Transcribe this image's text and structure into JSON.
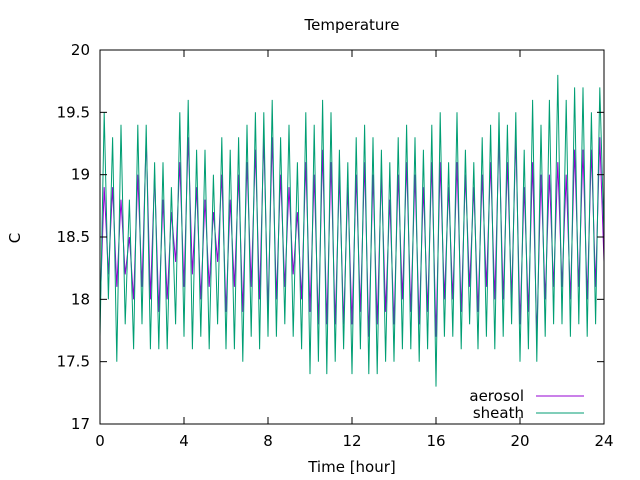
{
  "chart_data": {
    "type": "line",
    "title": "Temperature",
    "xlabel": "Time [hour]",
    "ylabel": "C",
    "xlim": [
      0,
      24
    ],
    "ylim": [
      17,
      20
    ],
    "xticks": [
      0,
      4,
      8,
      12,
      16,
      20,
      24
    ],
    "yticks": [
      17,
      17.5,
      18,
      18.5,
      19,
      19.5,
      20
    ],
    "grid": false,
    "legend_position": "bottom-right",
    "series": [
      {
        "name": "aerosol",
        "color": "#9400d3",
        "x": [
          0.0,
          0.2,
          0.4,
          0.6,
          0.8,
          1.0,
          1.2,
          1.4,
          1.6,
          1.8,
          2.0,
          2.2,
          2.4,
          2.6,
          2.8,
          3.0,
          3.2,
          3.4,
          3.6,
          3.8,
          4.0,
          4.2,
          4.4,
          4.6,
          4.8,
          5.0,
          5.2,
          5.4,
          5.6,
          5.8,
          6.0,
          6.2,
          6.4,
          6.6,
          6.8,
          7.0,
          7.2,
          7.4,
          7.6,
          7.8,
          8.0,
          8.2,
          8.4,
          8.6,
          8.8,
          9.0,
          9.2,
          9.4,
          9.6,
          9.8,
          10.0,
          10.2,
          10.4,
          10.6,
          10.8,
          11.0,
          11.2,
          11.4,
          11.6,
          11.8,
          12.0,
          12.2,
          12.4,
          12.6,
          12.8,
          13.0,
          13.2,
          13.4,
          13.6,
          13.8,
          14.0,
          14.2,
          14.4,
          14.6,
          14.8,
          15.0,
          15.2,
          15.4,
          15.6,
          15.8,
          16.0,
          16.2,
          16.4,
          16.6,
          16.8,
          17.0,
          17.2,
          17.4,
          17.6,
          17.8,
          18.0,
          18.2,
          18.4,
          18.6,
          18.8,
          19.0,
          19.2,
          19.4,
          19.6,
          19.8,
          20.0,
          20.2,
          20.4,
          20.6,
          20.8,
          21.0,
          21.2,
          21.4,
          21.6,
          21.8,
          22.0,
          22.2,
          22.4,
          22.6,
          22.8,
          23.0,
          23.2,
          23.4,
          23.6,
          23.8,
          24.0
        ],
        "y": [
          17.9,
          18.9,
          18.2,
          18.9,
          18.1,
          18.8,
          18.2,
          18.5,
          18.0,
          19.0,
          18.1,
          19.3,
          18.0,
          19.0,
          17.9,
          18.8,
          18.0,
          18.7,
          18.3,
          19.1,
          18.1,
          19.3,
          18.2,
          18.9,
          18.0,
          18.8,
          18.1,
          18.7,
          18.3,
          19.0,
          17.9,
          18.8,
          18.1,
          19.0,
          17.9,
          19.1,
          18.1,
          19.2,
          18.0,
          19.3,
          17.9,
          19.3,
          18.0,
          19.0,
          18.1,
          18.9,
          18.2,
          18.7,
          18.0,
          19.1,
          17.9,
          19.0,
          17.8,
          19.2,
          17.8,
          19.1,
          17.8,
          19.0,
          17.8,
          18.9,
          17.8,
          19.0,
          17.9,
          19.1,
          17.7,
          19.0,
          17.8,
          19.0,
          17.9,
          18.8,
          17.8,
          19.0,
          18.0,
          19.1,
          17.9,
          19.0,
          17.8,
          18.9,
          17.9,
          19.1,
          17.7,
          19.1,
          18.0,
          18.9,
          18.0,
          19.1,
          17.9,
          19.0,
          18.1,
          18.9,
          17.9,
          19.0,
          18.1,
          19.1,
          18.0,
          19.3,
          18.0,
          19.1,
          18.0,
          19.3,
          17.8,
          18.9,
          17.9,
          19.1,
          17.7,
          19.0,
          18.0,
          19.0,
          18.1,
          19.1,
          18.1,
          19.0,
          18.0,
          19.2,
          18.1,
          19.2,
          18.0,
          19.2,
          18.1,
          19.3,
          18.3
        ]
      },
      {
        "name": "sheath",
        "color": "#009e73",
        "x": [
          0.0,
          0.2,
          0.4,
          0.6,
          0.8,
          1.0,
          1.2,
          1.4,
          1.6,
          1.8,
          2.0,
          2.2,
          2.4,
          2.6,
          2.8,
          3.0,
          3.2,
          3.4,
          3.6,
          3.8,
          4.0,
          4.2,
          4.4,
          4.6,
          4.8,
          5.0,
          5.2,
          5.4,
          5.6,
          5.8,
          6.0,
          6.2,
          6.4,
          6.6,
          6.8,
          7.0,
          7.2,
          7.4,
          7.6,
          7.8,
          8.0,
          8.2,
          8.4,
          8.6,
          8.8,
          9.0,
          9.2,
          9.4,
          9.6,
          9.8,
          10.0,
          10.2,
          10.4,
          10.6,
          10.8,
          11.0,
          11.2,
          11.4,
          11.6,
          11.8,
          12.0,
          12.2,
          12.4,
          12.6,
          12.8,
          13.0,
          13.2,
          13.4,
          13.6,
          13.8,
          14.0,
          14.2,
          14.4,
          14.6,
          14.8,
          15.0,
          15.2,
          15.4,
          15.6,
          15.8,
          16.0,
          16.2,
          16.4,
          16.6,
          16.8,
          17.0,
          17.2,
          17.4,
          17.6,
          17.8,
          18.0,
          18.2,
          18.4,
          18.6,
          18.8,
          19.0,
          19.2,
          19.4,
          19.6,
          19.8,
          20.0,
          20.2,
          20.4,
          20.6,
          20.8,
          21.0,
          21.2,
          21.4,
          21.6,
          21.8,
          22.0,
          22.2,
          22.4,
          22.6,
          22.8,
          23.0,
          23.2,
          23.4,
          23.6,
          23.8,
          24.0
        ],
        "y": [
          17.7,
          19.5,
          18.0,
          19.3,
          17.5,
          19.4,
          17.8,
          18.8,
          17.6,
          19.4,
          17.8,
          19.4,
          17.6,
          19.1,
          17.6,
          19.1,
          17.6,
          18.9,
          17.8,
          19.5,
          17.7,
          19.6,
          17.6,
          19.2,
          17.7,
          19.2,
          17.6,
          19.0,
          17.8,
          19.3,
          17.6,
          19.2,
          17.6,
          19.3,
          17.5,
          19.4,
          17.7,
          19.5,
          17.6,
          19.5,
          17.7,
          19.6,
          17.7,
          19.3,
          17.8,
          19.4,
          17.7,
          19.1,
          17.6,
          19.5,
          17.4,
          19.4,
          17.5,
          19.6,
          17.4,
          19.5,
          17.5,
          19.2,
          17.6,
          19.1,
          17.4,
          19.3,
          17.6,
          19.4,
          17.4,
          19.3,
          17.4,
          19.2,
          17.5,
          19.1,
          17.5,
          19.3,
          17.6,
          19.4,
          17.6,
          19.3,
          17.5,
          19.2,
          17.6,
          19.4,
          17.3,
          19.5,
          17.7,
          19.1,
          17.7,
          19.5,
          17.6,
          19.2,
          17.8,
          19.1,
          17.6,
          19.3,
          17.7,
          19.4,
          17.6,
          19.5,
          17.7,
          19.4,
          17.8,
          19.5,
          17.5,
          19.2,
          17.6,
          19.6,
          17.5,
          19.4,
          17.7,
          19.6,
          17.8,
          19.8,
          17.8,
          19.6,
          17.7,
          19.7,
          17.8,
          19.7,
          17.7,
          19.5,
          17.8,
          19.7,
          18.5
        ]
      }
    ]
  }
}
